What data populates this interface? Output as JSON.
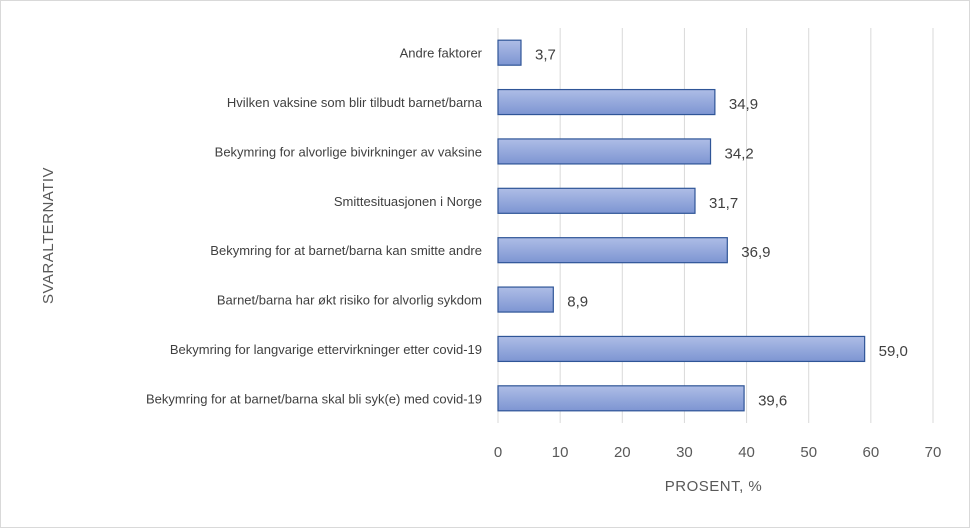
{
  "chart_data": {
    "type": "bar",
    "orientation": "horizontal",
    "categories": [
      "Andre faktorer",
      "Hvilken vaksine som blir tilbudt barnet/barna",
      "Bekymring for alvorlige bivirkninger av vaksine",
      "Smittesituasjonen i Norge",
      "Bekymring for at barnet/barna kan smitte andre",
      "Barnet/barna har økt risiko for alvorlig sykdom",
      "Bekymring for langvarige ettervirkninger etter covid-19",
      "Bekymring for at barnet/barna skal bli syk(e) med covid-19"
    ],
    "values": [
      3.7,
      34.9,
      34.2,
      31.7,
      36.9,
      8.9,
      59.0,
      39.6
    ],
    "value_labels": [
      "3,7",
      "34,9",
      "34,2",
      "31,7",
      "36,9",
      "8,9",
      "59,0",
      "39,6"
    ],
    "xlabel": "PROSENT, %",
    "ylabel": "SVARALTERNATIV",
    "xlim": [
      0,
      70
    ],
    "xticks": [
      0,
      10,
      20,
      30,
      40,
      50,
      60,
      70
    ],
    "grid": true,
    "legend": "none",
    "colors": {
      "bar_fill_top": "#aebde6",
      "bar_fill_bottom": "#7d95d2",
      "bar_edge": "#2f5597",
      "grid": "#d9d9d9"
    }
  }
}
